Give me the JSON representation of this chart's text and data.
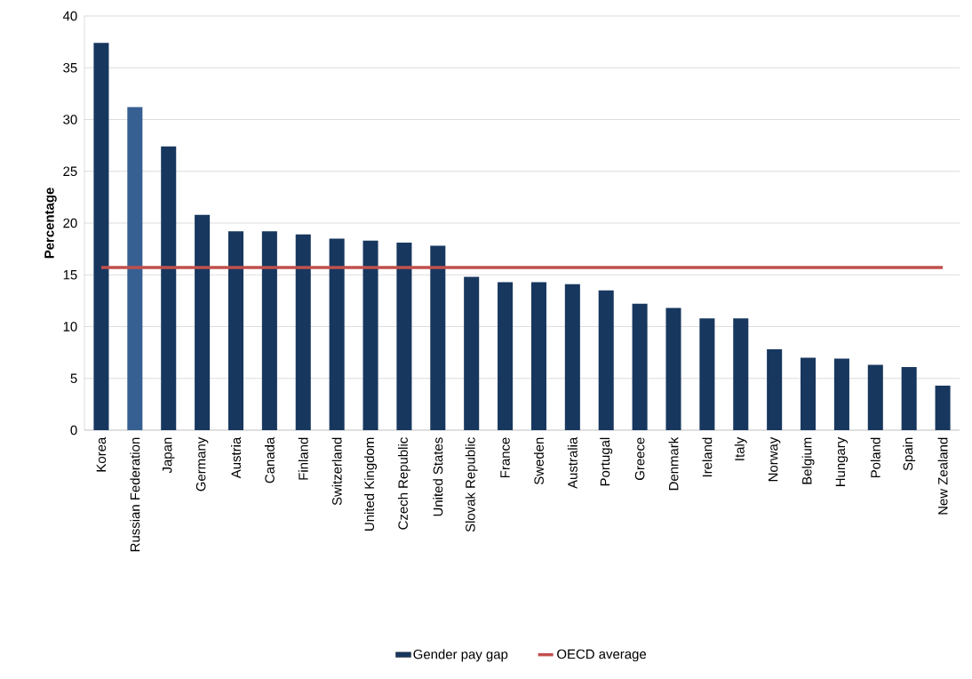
{
  "chart_data": {
    "type": "bar",
    "ylabel": "Percentage",
    "categories": [
      "Korea",
      "Russian Federation",
      "Japan",
      "Germany",
      "Austria",
      "Canada",
      "Finland",
      "Switzerland",
      "United Kingdom",
      "Czech Republic",
      "United States",
      "Slovak Republic",
      "France",
      "Sweden",
      "Australia",
      "Portugal",
      "Greece",
      "Denmark",
      "Ireland",
      "Italy",
      "Norway",
      "Belgium",
      "Hungary",
      "Poland",
      "Spain",
      "New Zealand"
    ],
    "series": [
      {
        "name": "Gender pay gap",
        "colors": [
          "#17375e",
          "#376092",
          "#17375e",
          "#17375e",
          "#17375e",
          "#17375e",
          "#17375e",
          "#17375e",
          "#17375e",
          "#17375e",
          "#17375e",
          "#17375e",
          "#17375e",
          "#17375e",
          "#17375e",
          "#17375e",
          "#17375e",
          "#17375e",
          "#17375e",
          "#17375e",
          "#17375e",
          "#17375e",
          "#17375e",
          "#17375e",
          "#17375e",
          "#17375e"
        ],
        "values": [
          37.4,
          31.2,
          27.4,
          20.8,
          19.2,
          19.2,
          18.9,
          18.5,
          18.3,
          18.1,
          17.8,
          14.8,
          14.3,
          14.3,
          14.1,
          13.5,
          12.2,
          11.8,
          10.8,
          10.8,
          7.8,
          7.0,
          6.9,
          6.3,
          6.1,
          4.3
        ]
      },
      {
        "name": "OECD average",
        "type": "line",
        "color": "#c0504d",
        "values": [
          15.7,
          15.7,
          15.7,
          15.7,
          15.7,
          15.7,
          15.7,
          15.7,
          15.7,
          15.7,
          15.7,
          15.7,
          15.7,
          15.7,
          15.7,
          15.7,
          15.7,
          15.7,
          15.7,
          15.7,
          15.7,
          15.7,
          15.7,
          15.7,
          15.7,
          15.7
        ]
      }
    ],
    "ylim": [
      0,
      40
    ],
    "yticks": [
      0,
      5,
      10,
      15,
      20,
      25,
      30,
      35,
      40
    ],
    "grid": "y",
    "legend": "bottom"
  }
}
